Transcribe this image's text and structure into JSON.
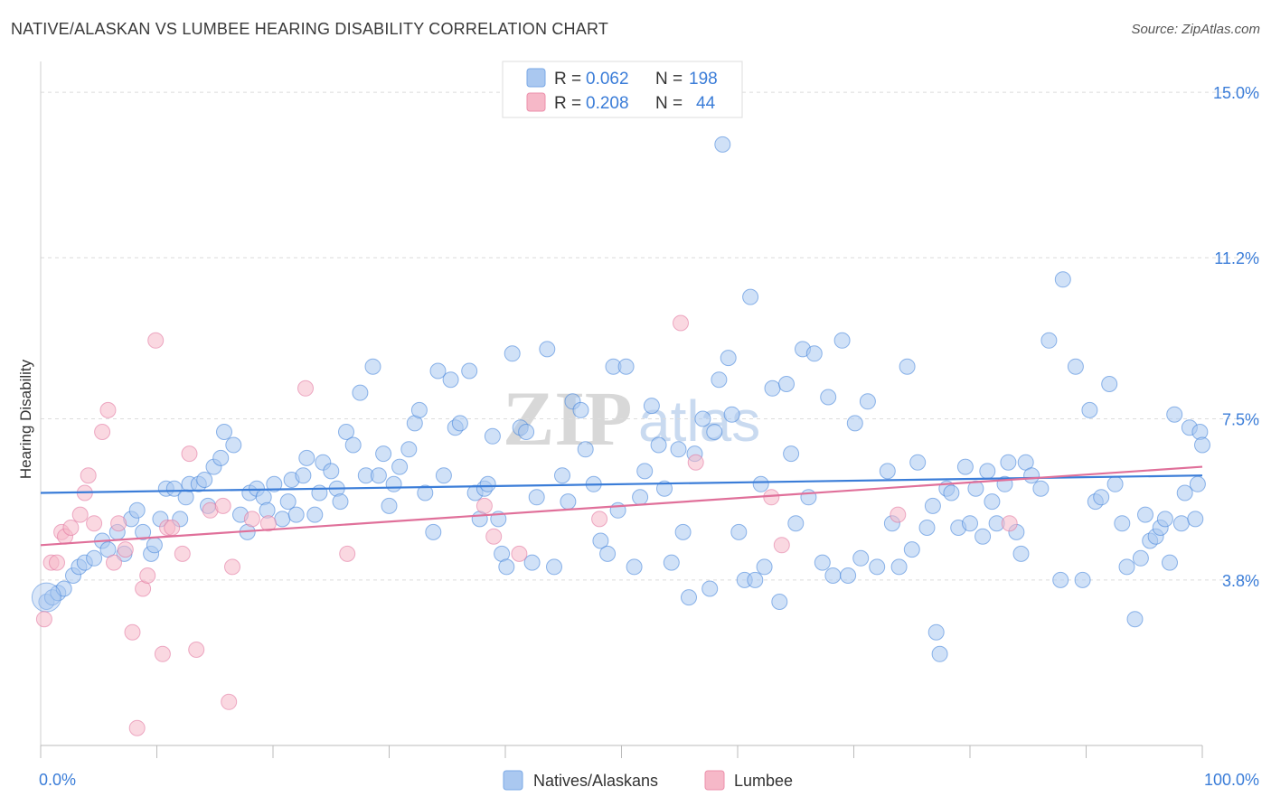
{
  "header": {
    "title": "NATIVE/ALASKAN VS LUMBEE HEARING DISABILITY CORRELATION CHART",
    "source": "Source: ZipAtlas.com"
  },
  "watermark": {
    "zip": "ZIP",
    "atlas": "atlas"
  },
  "legend_top": [
    {
      "r_label": "R = ",
      "r_value": "0.062",
      "n_label": "N = ",
      "n_value": "198",
      "color": "#aac8f0"
    },
    {
      "r_label": "R = ",
      "r_value": "0.208",
      "n_label": "N = ",
      "n_value": "44",
      "color": "#f6b8c8"
    }
  ],
  "legend_bottom": [
    {
      "label": "Natives/Alaskans",
      "color": "#aac8f0"
    },
    {
      "label": "Lumbee",
      "color": "#f6b8c8"
    }
  ],
  "chart_data": {
    "type": "scatter",
    "title": "NATIVE/ALASKAN VS LUMBEE HEARING DISABILITY CORRELATION CHART",
    "xlabel": "",
    "ylabel": "Hearing Disability",
    "xlim": [
      0,
      100
    ],
    "ylim": [
      0,
      15.5
    ],
    "x_tick_labels": [
      "0.0%",
      "100.0%"
    ],
    "y_ticks": [
      3.8,
      7.5,
      11.2,
      15.0
    ],
    "y_tick_labels": [
      "3.8%",
      "7.5%",
      "11.2%",
      "15.0%"
    ],
    "grid": true,
    "colors": {
      "natives": "#3b7dd8",
      "natives_fill": "#aac8f0",
      "lumbee": "#e0709a",
      "lumbee_fill": "#f6b8c8"
    },
    "series": [
      {
        "name": "Natives/Alaskans",
        "trend": {
          "x": [
            0,
            100
          ],
          "y": [
            5.8,
            6.2
          ]
        },
        "points": [
          [
            0.5,
            3.3
          ],
          [
            1.0,
            3.4
          ],
          [
            1.5,
            3.5
          ],
          [
            2.0,
            3.6
          ],
          [
            2.8,
            3.9
          ],
          [
            3.3,
            4.1
          ],
          [
            3.8,
            4.2
          ],
          [
            4.6,
            4.3
          ],
          [
            5.3,
            4.7
          ],
          [
            5.8,
            4.5
          ],
          [
            6.6,
            4.9
          ],
          [
            7.2,
            4.4
          ],
          [
            7.8,
            5.2
          ],
          [
            8.3,
            5.4
          ],
          [
            8.8,
            4.9
          ],
          [
            9.5,
            4.4
          ],
          [
            9.8,
            4.6
          ],
          [
            10.3,
            5.2
          ],
          [
            10.8,
            5.9
          ],
          [
            11.5,
            5.9
          ],
          [
            12.0,
            5.2
          ],
          [
            12.5,
            5.7
          ],
          [
            12.8,
            6.0
          ],
          [
            13.6,
            6.0
          ],
          [
            14.1,
            6.1
          ],
          [
            14.4,
            5.5
          ],
          [
            14.9,
            6.4
          ],
          [
            15.5,
            6.6
          ],
          [
            15.8,
            7.2
          ],
          [
            16.6,
            6.9
          ],
          [
            17.2,
            5.3
          ],
          [
            17.8,
            4.9
          ],
          [
            18.0,
            5.8
          ],
          [
            18.6,
            5.9
          ],
          [
            19.2,
            5.7
          ],
          [
            19.5,
            5.4
          ],
          [
            20.1,
            6.0
          ],
          [
            20.8,
            5.2
          ],
          [
            21.3,
            5.6
          ],
          [
            21.6,
            6.1
          ],
          [
            22.0,
            5.3
          ],
          [
            22.6,
            6.2
          ],
          [
            22.9,
            6.6
          ],
          [
            23.6,
            5.3
          ],
          [
            24.0,
            5.8
          ],
          [
            24.3,
            6.5
          ],
          [
            25.0,
            6.3
          ],
          [
            25.5,
            5.9
          ],
          [
            25.8,
            5.6
          ],
          [
            26.3,
            7.2
          ],
          [
            26.9,
            6.9
          ],
          [
            27.5,
            8.1
          ],
          [
            28.0,
            6.2
          ],
          [
            28.6,
            8.7
          ],
          [
            29.1,
            6.2
          ],
          [
            29.5,
            6.7
          ],
          [
            30.0,
            5.5
          ],
          [
            30.4,
            6.0
          ],
          [
            30.9,
            6.4
          ],
          [
            31.7,
            6.8
          ],
          [
            32.2,
            7.4
          ],
          [
            32.6,
            7.7
          ],
          [
            33.1,
            5.8
          ],
          [
            33.8,
            4.9
          ],
          [
            34.2,
            8.6
          ],
          [
            34.7,
            6.2
          ],
          [
            35.3,
            8.4
          ],
          [
            35.7,
            7.3
          ],
          [
            36.1,
            7.4
          ],
          [
            36.9,
            8.6
          ],
          [
            37.4,
            5.8
          ],
          [
            37.8,
            5.2
          ],
          [
            38.2,
            5.9
          ],
          [
            38.5,
            6.0
          ],
          [
            38.9,
            7.1
          ],
          [
            39.4,
            5.2
          ],
          [
            39.7,
            4.4
          ],
          [
            40.1,
            4.1
          ],
          [
            40.6,
            9.0
          ],
          [
            41.3,
            7.3
          ],
          [
            41.8,
            7.2
          ],
          [
            42.3,
            4.2
          ],
          [
            42.7,
            5.7
          ],
          [
            43.6,
            9.1
          ],
          [
            44.2,
            4.1
          ],
          [
            44.9,
            6.2
          ],
          [
            45.4,
            5.6
          ],
          [
            45.8,
            7.9
          ],
          [
            46.5,
            7.7
          ],
          [
            46.9,
            6.8
          ],
          [
            47.6,
            6.0
          ],
          [
            48.2,
            4.7
          ],
          [
            48.8,
            4.4
          ],
          [
            49.3,
            8.7
          ],
          [
            49.7,
            5.4
          ],
          [
            50.4,
            8.7
          ],
          [
            51.1,
            4.1
          ],
          [
            51.6,
            5.7
          ],
          [
            52.0,
            6.3
          ],
          [
            52.6,
            7.8
          ],
          [
            53.2,
            6.9
          ],
          [
            53.7,
            5.9
          ],
          [
            54.3,
            4.2
          ],
          [
            54.9,
            6.8
          ],
          [
            55.3,
            4.9
          ],
          [
            55.8,
            3.4
          ],
          [
            56.3,
            6.7
          ],
          [
            57.0,
            7.5
          ],
          [
            57.6,
            3.6
          ],
          [
            58.0,
            7.2
          ],
          [
            58.4,
            8.4
          ],
          [
            58.7,
            13.8
          ],
          [
            59.2,
            8.9
          ],
          [
            59.5,
            7.6
          ],
          [
            60.1,
            4.9
          ],
          [
            60.6,
            3.8
          ],
          [
            61.1,
            10.3
          ],
          [
            61.5,
            3.8
          ],
          [
            62.0,
            6.0
          ],
          [
            62.3,
            4.1
          ],
          [
            63.0,
            8.2
          ],
          [
            63.6,
            3.3
          ],
          [
            64.2,
            8.3
          ],
          [
            64.6,
            6.7
          ],
          [
            65.0,
            5.1
          ],
          [
            65.6,
            9.1
          ],
          [
            66.1,
            5.7
          ],
          [
            66.6,
            9.0
          ],
          [
            67.3,
            4.2
          ],
          [
            67.8,
            8.0
          ],
          [
            68.2,
            3.9
          ],
          [
            69.0,
            9.3
          ],
          [
            69.5,
            3.9
          ],
          [
            70.1,
            7.4
          ],
          [
            70.6,
            4.3
          ],
          [
            71.2,
            7.9
          ],
          [
            72.0,
            4.1
          ],
          [
            72.9,
            6.3
          ],
          [
            73.3,
            5.1
          ],
          [
            73.9,
            4.1
          ],
          [
            74.6,
            8.7
          ],
          [
            75.0,
            4.5
          ],
          [
            75.5,
            6.5
          ],
          [
            76.3,
            5.0
          ],
          [
            76.8,
            5.5
          ],
          [
            77.1,
            2.6
          ],
          [
            77.4,
            2.1
          ],
          [
            78.0,
            5.9
          ],
          [
            78.4,
            5.8
          ],
          [
            79.0,
            5.0
          ],
          [
            79.6,
            6.4
          ],
          [
            80.0,
            5.1
          ],
          [
            80.5,
            5.9
          ],
          [
            81.1,
            4.8
          ],
          [
            81.5,
            6.3
          ],
          [
            81.9,
            5.6
          ],
          [
            82.3,
            5.1
          ],
          [
            83.0,
            6.0
          ],
          [
            83.3,
            6.5
          ],
          [
            84.0,
            4.9
          ],
          [
            84.4,
            4.4
          ],
          [
            84.8,
            6.5
          ],
          [
            85.3,
            6.2
          ],
          [
            86.1,
            5.9
          ],
          [
            86.8,
            9.3
          ],
          [
            87.8,
            3.8
          ],
          [
            88.0,
            10.7
          ],
          [
            89.1,
            8.7
          ],
          [
            89.7,
            3.8
          ],
          [
            90.3,
            7.7
          ],
          [
            90.8,
            5.6
          ],
          [
            91.3,
            5.7
          ],
          [
            92.0,
            8.3
          ],
          [
            92.5,
            6.0
          ],
          [
            93.1,
            5.1
          ],
          [
            93.5,
            4.1
          ],
          [
            94.2,
            2.9
          ],
          [
            94.7,
            4.3
          ],
          [
            95.1,
            5.3
          ],
          [
            95.5,
            4.7
          ],
          [
            96.0,
            4.8
          ],
          [
            96.4,
            5.0
          ],
          [
            96.8,
            5.2
          ],
          [
            97.2,
            4.2
          ],
          [
            97.6,
            7.6
          ],
          [
            98.2,
            5.1
          ],
          [
            98.5,
            5.8
          ],
          [
            98.9,
            7.3
          ],
          [
            99.4,
            5.2
          ],
          [
            99.6,
            6.0
          ],
          [
            99.8,
            7.2
          ],
          [
            100.0,
            6.9
          ]
        ]
      },
      {
        "name": "Lumbee",
        "trend": {
          "x": [
            0,
            100
          ],
          "y": [
            4.6,
            6.4
          ]
        },
        "points": [
          [
            0.3,
            2.9
          ],
          [
            0.9,
            4.2
          ],
          [
            1.4,
            4.2
          ],
          [
            1.8,
            4.9
          ],
          [
            2.1,
            4.8
          ],
          [
            2.6,
            5.0
          ],
          [
            3.4,
            5.3
          ],
          [
            3.8,
            5.8
          ],
          [
            4.1,
            6.2
          ],
          [
            4.6,
            5.1
          ],
          [
            5.3,
            7.2
          ],
          [
            5.8,
            7.7
          ],
          [
            6.3,
            4.2
          ],
          [
            6.7,
            5.1
          ],
          [
            7.3,
            4.5
          ],
          [
            7.9,
            2.6
          ],
          [
            8.3,
            0.4
          ],
          [
            8.8,
            3.6
          ],
          [
            9.2,
            3.9
          ],
          [
            9.9,
            9.3
          ],
          [
            10.5,
            2.1
          ],
          [
            10.9,
            5.0
          ],
          [
            11.3,
            5.0
          ],
          [
            12.2,
            4.4
          ],
          [
            12.8,
            6.7
          ],
          [
            13.4,
            2.2
          ],
          [
            14.6,
            5.4
          ],
          [
            15.7,
            5.5
          ],
          [
            16.2,
            1.0
          ],
          [
            16.5,
            4.1
          ],
          [
            18.2,
            5.2
          ],
          [
            19.6,
            5.1
          ],
          [
            22.8,
            8.2
          ],
          [
            26.4,
            4.4
          ],
          [
            38.2,
            5.5
          ],
          [
            39.0,
            4.8
          ],
          [
            41.2,
            4.4
          ],
          [
            48.1,
            5.2
          ],
          [
            55.1,
            9.7
          ],
          [
            56.4,
            6.5
          ],
          [
            62.9,
            5.7
          ],
          [
            63.8,
            4.6
          ],
          [
            73.8,
            5.3
          ],
          [
            83.4,
            5.1
          ]
        ]
      }
    ]
  }
}
